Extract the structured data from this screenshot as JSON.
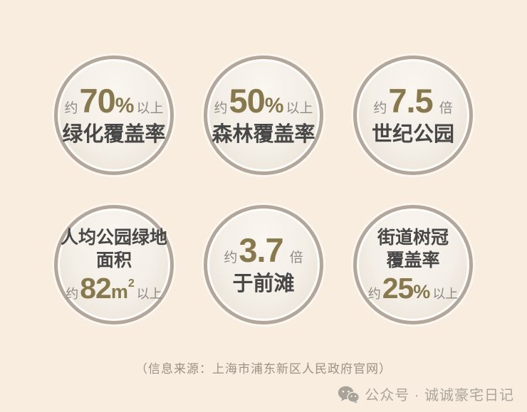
{
  "canvas": {
    "background": "#f8edde"
  },
  "colors": {
    "accent": "#87794d",
    "muted": "#8f8b84",
    "label": "#474747",
    "ring": "#b3a79c",
    "source": "#9c9186",
    "watermark": "#aba59b"
  },
  "stats": [
    {
      "layout": "value-first",
      "prefix": "约",
      "value": "70",
      "unit": "%",
      "suffix": "以上",
      "labels": [
        "绿化覆盖率"
      ]
    },
    {
      "layout": "value-first",
      "prefix": "约",
      "value": "50",
      "unit": "%",
      "suffix": "以上",
      "labels": [
        "森林覆盖率"
      ]
    },
    {
      "layout": "value-first",
      "prefix": "约",
      "value": "7.5",
      "unit": "",
      "suffix": "倍",
      "labels": [
        "世纪公园"
      ]
    },
    {
      "layout": "label-first",
      "prefix": "约",
      "value": "82",
      "unit": "m",
      "unit_sup": "2",
      "suffix": "以上",
      "labels": [
        "人均公园绿地",
        "面积"
      ]
    },
    {
      "layout": "value-first",
      "prefix": "约",
      "value": "3.7",
      "unit": "",
      "suffix": "倍",
      "labels": [
        "于前滩"
      ]
    },
    {
      "layout": "label-first",
      "prefix": "约",
      "value": "25",
      "unit": "%",
      "suffix": "以上",
      "labels": [
        "街道树冠",
        "覆盖率"
      ]
    }
  ],
  "footer": {
    "source_note": "（信息来源：上海市浦东新区人民政府官网）",
    "watermark_icon": "wechat-icon",
    "watermark_text": "公众号 · 诚诚豪宅日记"
  }
}
